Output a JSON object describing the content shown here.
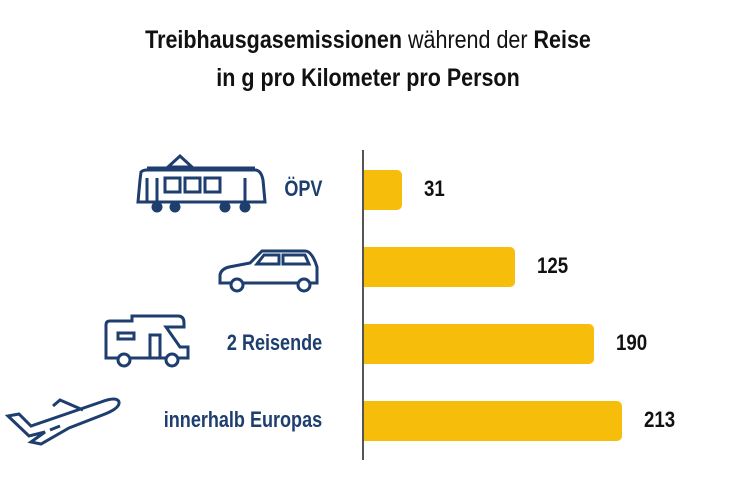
{
  "title": {
    "line1_bold": "Treibhausgasemissionen",
    "line1_regular": " während der ",
    "line1_bold2": "Reise",
    "line2": "in g pro Kilometer pro Person"
  },
  "colors": {
    "bar": "#f7bd0b",
    "label": "#1d3e6e",
    "icon": "#1d3e6e"
  },
  "chart_data": {
    "type": "bar",
    "orientation": "horizontal",
    "categories": [
      "ÖPV",
      "",
      "2 Reisende",
      "innerhalb Europas"
    ],
    "category_icons": [
      "tram-icon",
      "car-icon",
      "camper-van-icon",
      "airplane-icon"
    ],
    "values": [
      31,
      125,
      190,
      213
    ],
    "data_labels": [
      "31",
      "125",
      "190",
      "213"
    ],
    "title": "Treibhausgasemissionen während der Reise in g pro Kilometer pro Person",
    "grid": false
  }
}
